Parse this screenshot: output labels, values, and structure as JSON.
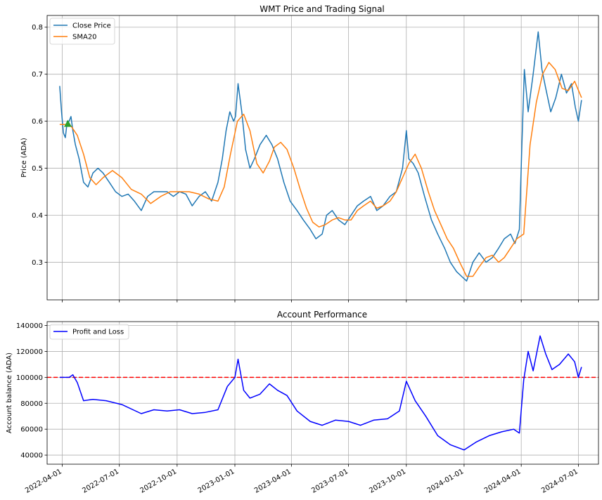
{
  "chart_data": [
    {
      "type": "line",
      "title": "WMT Price and Trading Signal",
      "xlabel": "",
      "ylabel": "Price (ADA)",
      "ylim": [
        0.22,
        0.825
      ],
      "xlim": [
        "2022-03-08",
        "2024-08-02"
      ],
      "yticks": [
        0.3,
        0.4,
        0.5,
        0.6,
        0.7,
        0.8
      ],
      "grid": true,
      "legend": "top-left",
      "series": [
        {
          "name": "Close Price",
          "color": "#1f77b4",
          "x": [
            "2022-03-28",
            "2022-03-31",
            "2022-04-03",
            "2022-04-06",
            "2022-04-09",
            "2022-04-12",
            "2022-04-15",
            "2022-04-18",
            "2022-04-22",
            "2022-04-28",
            "2022-05-05",
            "2022-05-12",
            "2022-05-20",
            "2022-05-28",
            "2022-06-05",
            "2022-06-15",
            "2022-06-25",
            "2022-07-05",
            "2022-07-15",
            "2022-07-25",
            "2022-08-05",
            "2022-08-15",
            "2022-08-25",
            "2022-09-05",
            "2022-09-15",
            "2022-09-25",
            "2022-10-05",
            "2022-10-15",
            "2022-10-25",
            "2022-11-05",
            "2022-11-15",
            "2022-11-25",
            "2022-12-05",
            "2022-12-12",
            "2022-12-18",
            "2022-12-24",
            "2022-12-30",
            "2023-01-02",
            "2023-01-06",
            "2023-01-12",
            "2023-01-18",
            "2023-01-25",
            "2023-02-01",
            "2023-02-10",
            "2023-02-20",
            "2023-03-01",
            "2023-03-10",
            "2023-03-20",
            "2023-03-30",
            "2023-04-10",
            "2023-04-20",
            "2023-05-01",
            "2023-05-10",
            "2023-05-20",
            "2023-05-27",
            "2023-06-05",
            "2023-06-15",
            "2023-06-25",
            "2023-07-05",
            "2023-07-15",
            "2023-07-25",
            "2023-08-05",
            "2023-08-15",
            "2023-08-25",
            "2023-09-05",
            "2023-09-15",
            "2023-09-25",
            "2023-10-01",
            "2023-10-05",
            "2023-10-12",
            "2023-10-20",
            "2023-10-30",
            "2023-11-10",
            "2023-11-20",
            "2023-12-01",
            "2023-12-10",
            "2023-12-20",
            "2023-12-28",
            "2024-01-05",
            "2024-01-15",
            "2024-01-25",
            "2024-02-05",
            "2024-02-15",
            "2024-02-25",
            "2024-03-05",
            "2024-03-15",
            "2024-03-22",
            "2024-03-29",
            "2024-04-02",
            "2024-04-06",
            "2024-04-12",
            "2024-04-20",
            "2024-04-28",
            "2024-05-04",
            "2024-05-10",
            "2024-05-18",
            "2024-05-26",
            "2024-06-04",
            "2024-06-12",
            "2024-06-20",
            "2024-06-26",
            "2024-07-01",
            "2024-07-06"
          ],
          "values": [
            0.675,
            0.62,
            0.575,
            0.565,
            0.6,
            0.6,
            0.61,
            0.58,
            0.55,
            0.52,
            0.47,
            0.46,
            0.49,
            0.5,
            0.49,
            0.47,
            0.45,
            0.44,
            0.445,
            0.43,
            0.41,
            0.44,
            0.45,
            0.45,
            0.45,
            0.44,
            0.45,
            0.445,
            0.42,
            0.44,
            0.45,
            0.43,
            0.47,
            0.52,
            0.58,
            0.62,
            0.6,
            0.61,
            0.68,
            0.62,
            0.54,
            0.5,
            0.52,
            0.55,
            0.57,
            0.55,
            0.52,
            0.47,
            0.43,
            0.41,
            0.39,
            0.37,
            0.35,
            0.36,
            0.4,
            0.41,
            0.39,
            0.38,
            0.4,
            0.42,
            0.43,
            0.44,
            0.41,
            0.42,
            0.44,
            0.45,
            0.5,
            0.58,
            0.52,
            0.51,
            0.49,
            0.44,
            0.39,
            0.36,
            0.33,
            0.3,
            0.28,
            0.27,
            0.26,
            0.3,
            0.32,
            0.3,
            0.31,
            0.33,
            0.35,
            0.36,
            0.34,
            0.37,
            0.55,
            0.71,
            0.62,
            0.7,
            0.79,
            0.71,
            0.67,
            0.62,
            0.65,
            0.7,
            0.66,
            0.68,
            0.63,
            0.6,
            0.645
          ]
        },
        {
          "name": "SMA20",
          "color": "#ff7f0e",
          "x": [
            "2022-03-28",
            "2022-04-05",
            "2022-04-15",
            "2022-04-25",
            "2022-05-05",
            "2022-05-15",
            "2022-05-25",
            "2022-06-05",
            "2022-06-20",
            "2022-07-05",
            "2022-07-20",
            "2022-08-05",
            "2022-08-20",
            "2022-09-05",
            "2022-09-20",
            "2022-10-05",
            "2022-10-20",
            "2022-11-05",
            "2022-11-20",
            "2022-12-05",
            "2022-12-15",
            "2022-12-25",
            "2023-01-05",
            "2023-01-15",
            "2023-01-25",
            "2023-02-05",
            "2023-02-15",
            "2023-02-25",
            "2023-03-05",
            "2023-03-15",
            "2023-03-25",
            "2023-04-05",
            "2023-04-15",
            "2023-04-25",
            "2023-05-05",
            "2023-05-15",
            "2023-05-25",
            "2023-06-05",
            "2023-06-15",
            "2023-06-25",
            "2023-07-05",
            "2023-07-15",
            "2023-07-25",
            "2023-08-05",
            "2023-08-15",
            "2023-08-25",
            "2023-09-05",
            "2023-09-15",
            "2023-09-25",
            "2023-10-05",
            "2023-10-15",
            "2023-10-25",
            "2023-11-05",
            "2023-11-15",
            "2023-11-25",
            "2023-12-05",
            "2023-12-15",
            "2023-12-25",
            "2024-01-05",
            "2024-01-15",
            "2024-01-25",
            "2024-02-05",
            "2024-02-15",
            "2024-02-25",
            "2024-03-05",
            "2024-03-15",
            "2024-03-25",
            "2024-04-05",
            "2024-04-15",
            "2024-04-25",
            "2024-05-05",
            "2024-05-15",
            "2024-05-25",
            "2024-06-05",
            "2024-06-15",
            "2024-06-25",
            "2024-07-06"
          ],
          "values": [
            0.593,
            0.593,
            0.59,
            0.57,
            0.53,
            0.48,
            0.465,
            0.48,
            0.495,
            0.48,
            0.455,
            0.445,
            0.425,
            0.44,
            0.45,
            0.45,
            0.45,
            0.445,
            0.435,
            0.43,
            0.46,
            0.53,
            0.6,
            0.615,
            0.58,
            0.51,
            0.49,
            0.515,
            0.545,
            0.555,
            0.54,
            0.5,
            0.455,
            0.415,
            0.385,
            0.375,
            0.38,
            0.39,
            0.395,
            0.39,
            0.39,
            0.41,
            0.42,
            0.43,
            0.415,
            0.42,
            0.43,
            0.45,
            0.48,
            0.51,
            0.53,
            0.5,
            0.45,
            0.41,
            0.38,
            0.35,
            0.33,
            0.3,
            0.27,
            0.27,
            0.29,
            0.31,
            0.315,
            0.3,
            0.31,
            0.33,
            0.35,
            0.36,
            0.55,
            0.64,
            0.7,
            0.725,
            0.71,
            0.67,
            0.665,
            0.685,
            0.65
          ]
        }
      ],
      "markers": [
        {
          "label": "buy",
          "x": "2022-04-10",
          "y": 0.594,
          "shape": "triangle-up",
          "color": "#2ca02c"
        }
      ]
    },
    {
      "type": "line",
      "title": "Account Performance",
      "xlabel": "",
      "ylabel": "Account balance (ADA)",
      "ylim": [
        33000,
        143000
      ],
      "xlim": [
        "2022-03-08",
        "2024-08-02"
      ],
      "yticks": [
        40000,
        60000,
        80000,
        100000,
        120000,
        140000
      ],
      "xticks": [
        "2022-04-01",
        "2022-07-01",
        "2022-10-01",
        "2023-01-01",
        "2023-04-01",
        "2023-07-01",
        "2023-10-01",
        "2024-01-01",
        "2024-04-01",
        "2024-07-01"
      ],
      "grid": true,
      "legend": "top-left",
      "reference_line": {
        "y": 100000,
        "style": "dashed",
        "color": "#ff0000"
      },
      "series": [
        {
          "name": "Profit and Loss",
          "color": "#0000ff",
          "x": [
            "2022-03-28",
            "2022-04-05",
            "2022-04-12",
            "2022-04-18",
            "2022-04-25",
            "2022-05-05",
            "2022-05-20",
            "2022-06-10",
            "2022-07-05",
            "2022-08-05",
            "2022-08-25",
            "2022-09-15",
            "2022-10-05",
            "2022-10-25",
            "2022-11-15",
            "2022-12-05",
            "2022-12-20",
            "2023-01-01",
            "2023-01-06",
            "2023-01-15",
            "2023-01-25",
            "2023-02-10",
            "2023-02-25",
            "2023-03-10",
            "2023-03-25",
            "2023-04-10",
            "2023-05-01",
            "2023-05-20",
            "2023-06-10",
            "2023-07-01",
            "2023-07-20",
            "2023-08-10",
            "2023-09-01",
            "2023-09-20",
            "2023-10-01",
            "2023-10-15",
            "2023-11-01",
            "2023-11-20",
            "2023-12-10",
            "2024-01-01",
            "2024-01-20",
            "2024-02-10",
            "2024-03-01",
            "2024-03-20",
            "2024-03-29",
            "2024-04-05",
            "2024-04-12",
            "2024-04-20",
            "2024-05-01",
            "2024-05-10",
            "2024-05-20",
            "2024-06-01",
            "2024-06-15",
            "2024-06-25",
            "2024-07-01",
            "2024-07-06"
          ],
          "values": [
            100000,
            100000,
            100000,
            102000,
            96000,
            82000,
            83000,
            82000,
            79000,
            72000,
            75000,
            74000,
            75000,
            72000,
            73000,
            75000,
            93000,
            100000,
            114000,
            90000,
            84000,
            87000,
            95000,
            90000,
            86000,
            74000,
            66000,
            63000,
            67000,
            66000,
            63000,
            67000,
            68000,
            74000,
            97000,
            82000,
            70000,
            55000,
            48000,
            44000,
            50000,
            55000,
            58000,
            60000,
            57000,
            98000,
            120000,
            105000,
            132000,
            118000,
            106000,
            110000,
            118000,
            112000,
            100000,
            108000
          ]
        }
      ]
    }
  ]
}
